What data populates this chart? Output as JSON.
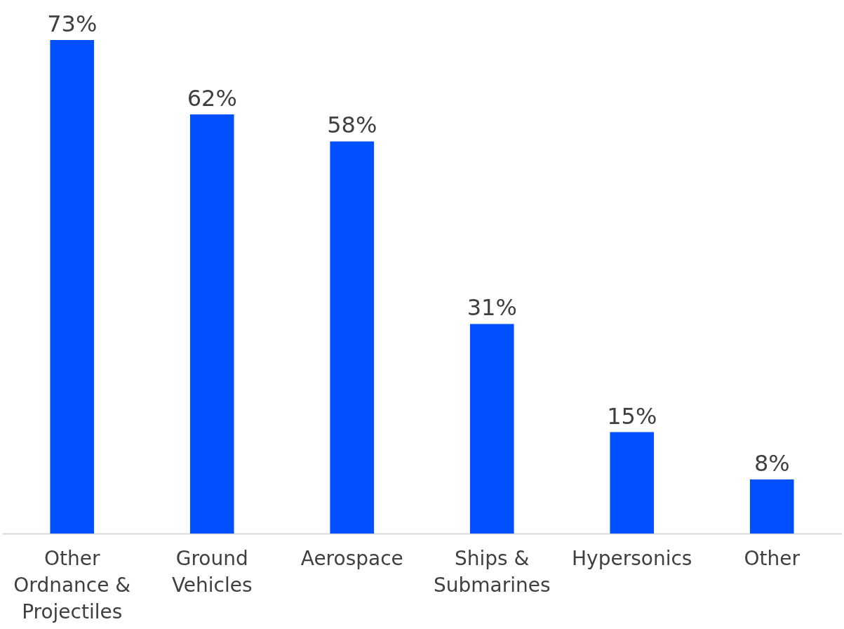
{
  "chart_data": {
    "type": "bar",
    "categories": [
      "Other Ordnance & Projectiles",
      "Ground Vehicles",
      "Aerospace",
      "Ships & Submarines",
      "Hypersonics",
      "Other"
    ],
    "values": [
      73,
      62,
      58,
      31,
      15,
      8
    ],
    "value_labels": [
      "73%",
      "62%",
      "58%",
      "31%",
      "15%",
      "8%"
    ],
    "color": "#0050ff"
  }
}
